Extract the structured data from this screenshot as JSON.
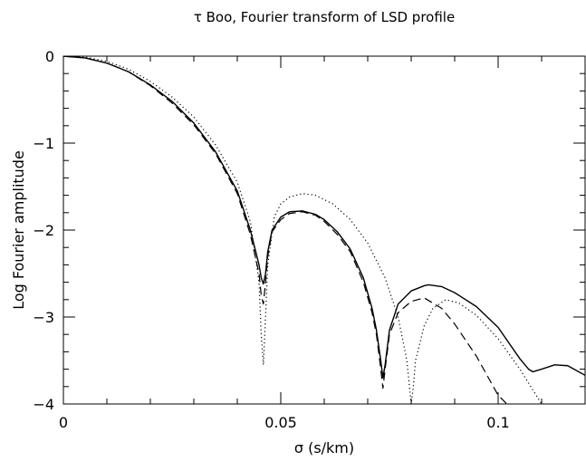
{
  "chart_data": {
    "type": "line",
    "title": "τ Boo, Fourier transform of LSD profile",
    "xlabel": "σ (s/km)",
    "ylabel": "Log Fourier amplitude",
    "xlim": [
      0,
      0.12
    ],
    "ylim": [
      -4,
      0
    ],
    "grid": false,
    "legend": "none",
    "x_ticks": [
      {
        "value": 0,
        "label": "0"
      },
      {
        "value": 0.05,
        "label": "0.05"
      },
      {
        "value": 0.1,
        "label": "0.1"
      }
    ],
    "y_ticks": [
      {
        "value": 0,
        "label": "0"
      },
      {
        "value": -1,
        "label": "−1"
      },
      {
        "value": -2,
        "label": "−2"
      },
      {
        "value": -3,
        "label": "−3"
      },
      {
        "value": -4,
        "label": "−4"
      }
    ],
    "series": [
      {
        "style": "solid",
        "x": [
          0,
          0.005,
          0.01,
          0.015,
          0.02,
          0.025,
          0.03,
          0.035,
          0.04,
          0.043,
          0.045,
          0.0455,
          0.046,
          0.0465,
          0.047,
          0.048,
          0.05,
          0.052,
          0.055,
          0.058,
          0.06,
          0.063,
          0.066,
          0.069,
          0.071,
          0.072,
          0.073,
          0.0735,
          0.074,
          0.075,
          0.077,
          0.08,
          0.083,
          0.084,
          0.087,
          0.09,
          0.095,
          0.1,
          0.105,
          0.107,
          0.108,
          0.11,
          0.113,
          0.116,
          0.12
        ],
        "y": [
          0,
          -0.02,
          -0.08,
          -0.18,
          -0.33,
          -0.52,
          -0.77,
          -1.1,
          -1.55,
          -2.0,
          -2.4,
          -2.55,
          -2.62,
          -2.5,
          -2.25,
          -2.0,
          -1.85,
          -1.79,
          -1.78,
          -1.82,
          -1.88,
          -2.02,
          -2.22,
          -2.55,
          -2.9,
          -3.15,
          -3.5,
          -3.7,
          -3.55,
          -3.15,
          -2.85,
          -2.7,
          -2.64,
          -2.63,
          -2.65,
          -2.72,
          -2.88,
          -3.12,
          -3.48,
          -3.6,
          -3.63,
          -3.6,
          -3.55,
          -3.56,
          -3.67
        ]
      },
      {
        "style": "dashed",
        "x": [
          0,
          0.005,
          0.01,
          0.015,
          0.02,
          0.025,
          0.03,
          0.035,
          0.04,
          0.043,
          0.045,
          0.0455,
          0.046,
          0.0465,
          0.047,
          0.048,
          0.05,
          0.052,
          0.055,
          0.058,
          0.06,
          0.063,
          0.066,
          0.069,
          0.071,
          0.072,
          0.073,
          0.0735,
          0.074,
          0.075,
          0.077,
          0.08,
          0.083,
          0.087,
          0.09,
          0.095,
          0.1,
          0.102
        ],
        "y": [
          0,
          -0.02,
          -0.08,
          -0.18,
          -0.34,
          -0.54,
          -0.79,
          -1.12,
          -1.58,
          -2.05,
          -2.5,
          -2.75,
          -2.85,
          -2.6,
          -2.3,
          -2.02,
          -1.88,
          -1.81,
          -1.79,
          -1.83,
          -1.9,
          -2.05,
          -2.25,
          -2.6,
          -2.95,
          -3.2,
          -3.6,
          -3.82,
          -3.6,
          -3.2,
          -2.95,
          -2.82,
          -2.78,
          -2.9,
          -3.08,
          -3.45,
          -3.9,
          -4.0
        ]
      },
      {
        "style": "dotted",
        "x": [
          0,
          0.005,
          0.01,
          0.015,
          0.02,
          0.025,
          0.03,
          0.035,
          0.04,
          0.043,
          0.045,
          0.0455,
          0.046,
          0.0465,
          0.047,
          0.0485,
          0.05,
          0.052,
          0.055,
          0.058,
          0.062,
          0.066,
          0.07,
          0.074,
          0.077,
          0.079,
          0.0795,
          0.08,
          0.0805,
          0.081,
          0.083,
          0.085,
          0.088,
          0.091,
          0.095,
          0.1,
          0.105,
          0.11
        ],
        "y": [
          0,
          -0.01,
          -0.06,
          -0.15,
          -0.29,
          -0.47,
          -0.7,
          -1.02,
          -1.45,
          -1.9,
          -2.6,
          -3.2,
          -3.55,
          -3.0,
          -2.4,
          -1.85,
          -1.7,
          -1.62,
          -1.58,
          -1.6,
          -1.7,
          -1.88,
          -2.15,
          -2.55,
          -3.0,
          -3.5,
          -3.75,
          -4.0,
          -3.8,
          -3.5,
          -3.1,
          -2.9,
          -2.8,
          -2.84,
          -2.98,
          -3.25,
          -3.6,
          -4.0
        ]
      }
    ]
  }
}
